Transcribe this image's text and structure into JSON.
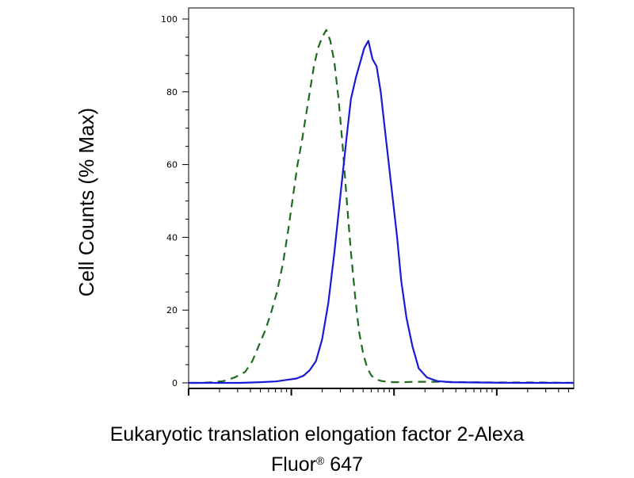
{
  "chart_data": {
    "type": "line",
    "ylabel": "Cell Counts (% Max)",
    "xlabel_main": "Eukaryotic translation elongation factor 2-Alexa",
    "xlabel_fluor": "Fluor",
    "xlabel_reg": "®",
    "xlabel_num": "647",
    "y_ticks": [
      "0",
      "20",
      "40",
      "60",
      "80",
      "100"
    ],
    "ylim": [
      0,
      100
    ],
    "x_scale": "log",
    "x_decades": 4,
    "grid": false,
    "series": [
      {
        "style": "dashed",
        "color": "#1e6b1e",
        "x": [
          0.02,
          0.12,
          0.24,
          0.34,
          0.45,
          0.55,
          0.62,
          0.68,
          0.74,
          0.8,
          0.86,
          0.92,
          0.97,
          1.02,
          1.06,
          1.1,
          1.14,
          1.18,
          1.22,
          1.26,
          1.3,
          1.34,
          1.38,
          1.42,
          1.46,
          1.5,
          1.54,
          1.58,
          1.62,
          1.66,
          1.7,
          1.74,
          1.78,
          1.82,
          1.88,
          1.94,
          2.0,
          2.1,
          2.2,
          2.4,
          2.7,
          3.0,
          3.4,
          3.75
        ],
        "y": [
          0,
          0,
          0.2,
          0.5,
          1.5,
          3,
          6,
          10,
          14,
          19,
          25,
          33,
          42,
          52,
          60,
          66,
          73,
          80,
          87,
          92,
          95,
          97,
          94,
          88,
          78,
          65,
          50,
          36,
          24,
          14,
          8,
          4,
          2,
          1,
          0.5,
          0.3,
          0.2,
          0.2,
          0.3,
          0.3,
          0.2,
          0.1,
          0.1,
          0
        ]
      },
      {
        "style": "solid",
        "color": "#1a1ad6",
        "x": [
          0,
          0.5,
          0.7,
          0.85,
          0.95,
          1.05,
          1.12,
          1.18,
          1.24,
          1.3,
          1.36,
          1.42,
          1.48,
          1.54,
          1.58,
          1.63,
          1.67,
          1.71,
          1.75,
          1.79,
          1.83,
          1.87,
          1.91,
          1.95,
          1.99,
          2.03,
          2.07,
          2.12,
          2.18,
          2.24,
          2.32,
          2.42,
          2.55,
          2.8,
          3.2,
          3.75
        ],
        "y": [
          0,
          0,
          0.2,
          0.4,
          0.8,
          1.2,
          2,
          3.5,
          6,
          12,
          22,
          36,
          52,
          68,
          78,
          84,
          88,
          92,
          94,
          89,
          87,
          80,
          70,
          60,
          50,
          40,
          28,
          18,
          10,
          4,
          1.5,
          0.5,
          0.2,
          0.1,
          0,
          0
        ]
      }
    ]
  }
}
